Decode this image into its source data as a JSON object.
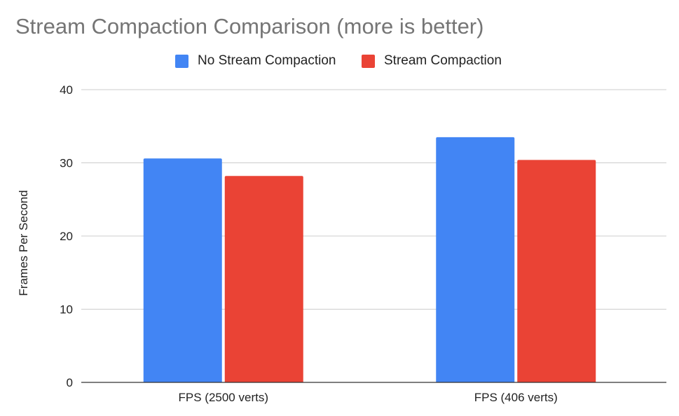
{
  "chart_data": {
    "type": "bar",
    "title": "Stream Compaction Comparison (more is better)",
    "xlabel": "",
    "ylabel": "Frames Per Second",
    "categories": [
      "FPS (2500 verts)",
      "FPS (406 verts)"
    ],
    "series": [
      {
        "name": "No Stream Compaction",
        "values": [
          30.6,
          33.5
        ],
        "color": "#4285f4"
      },
      {
        "name": "Stream Compaction",
        "values": [
          28.2,
          30.4
        ],
        "color": "#ea4335"
      }
    ],
    "ylim": [
      0,
      40
    ],
    "yticks": [
      "0",
      "10",
      "20",
      "30",
      "40"
    ],
    "grid": true,
    "legend_position": "top"
  }
}
